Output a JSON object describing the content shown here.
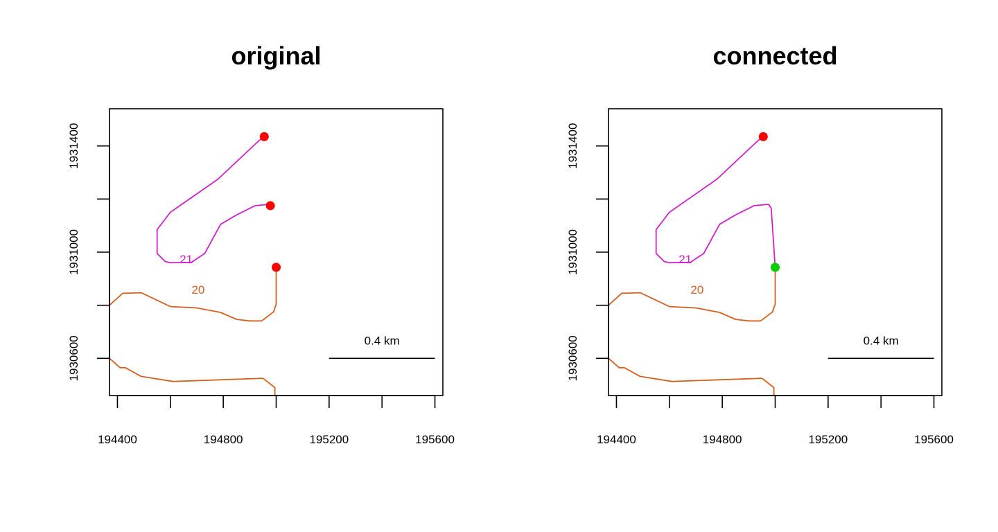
{
  "chart_data": [
    {
      "type": "line",
      "title": "original",
      "xlabel": "",
      "ylabel": "",
      "xlim": [
        194370,
        195630
      ],
      "ylim": [
        1930460,
        1931540
      ],
      "x_ticks": [
        194400,
        194600,
        194800,
        195000,
        195200,
        195400,
        195600
      ],
      "x_tick_labels": [
        "194400",
        "",
        "194800",
        "",
        "195200",
        "",
        "195600"
      ],
      "y_ticks": [
        1930600,
        1930800,
        1931000,
        1931200,
        1931400
      ],
      "y_tick_labels": [
        "1930600",
        "",
        "1931000",
        "",
        "1931400"
      ],
      "series": [
        {
          "color": "#cc22cc",
          "points": [
            [
              194950,
              1931430
            ],
            [
              194935,
              1931420
            ],
            [
              194780,
              1931275
            ],
            [
              194600,
              1931150
            ],
            [
              194550,
              1931085
            ],
            [
              194550,
              1930995
            ],
            [
              194580,
              1930965
            ],
            [
              194600,
              1930960
            ],
            [
              194680,
              1930962
            ],
            [
              194730,
              1930995
            ],
            [
              194790,
              1931105
            ],
            [
              194850,
              1931140
            ],
            [
              194920,
              1931175
            ],
            [
              194975,
              1931180
            ]
          ]
        },
        {
          "color": "#d2601f",
          "points": [
            [
              194370,
              1930800
            ],
            [
              194420,
              1930845
            ],
            [
              194490,
              1930847
            ],
            [
              194600,
              1930795
            ],
            [
              194700,
              1930790
            ],
            [
              194790,
              1930773
            ],
            [
              194850,
              1930747
            ],
            [
              194900,
              1930741
            ],
            [
              194945,
              1930741
            ],
            [
              194990,
              1930775
            ],
            [
              195000,
              1930805
            ],
            [
              195000,
              1930940
            ]
          ]
        },
        {
          "color": "#d2601f",
          "points": [
            [
              194370,
              1930600
            ],
            [
              194410,
              1930565
            ],
            [
              194430,
              1930565
            ],
            [
              194490,
              1930532
            ],
            [
              194610,
              1930513
            ],
            [
              194950,
              1930525
            ],
            [
              194995,
              1930490
            ],
            [
              194995,
              1930460
            ]
          ]
        }
      ],
      "points": [
        {
          "x": 194955,
          "y": 1931435,
          "color": "#ff0000"
        },
        {
          "x": 194978,
          "y": 1931175,
          "color": "#ff0000"
        },
        {
          "x": 195000,
          "y": 1930943,
          "color": "#ff0000"
        }
      ],
      "labels": [
        {
          "text": "21",
          "x": 194660,
          "y": 1930970,
          "color": "#cc22cc"
        },
        {
          "text": "20",
          "x": 194705,
          "y": 1930855,
          "color": "#d2601f"
        }
      ],
      "scale_bar": {
        "label": "0.4 km",
        "x0": 195200,
        "x1": 195600,
        "y": 1930600
      }
    },
    {
      "type": "line",
      "title": "connected",
      "xlabel": "",
      "ylabel": "",
      "xlim": [
        194370,
        195630
      ],
      "ylim": [
        1930460,
        1931540
      ],
      "x_ticks": [
        194400,
        194600,
        194800,
        195000,
        195200,
        195400,
        195600
      ],
      "x_tick_labels": [
        "194400",
        "",
        "194800",
        "",
        "195200",
        "",
        "195600"
      ],
      "y_ticks": [
        1930600,
        1930800,
        1931000,
        1931200,
        1931400
      ],
      "y_tick_labels": [
        "1930600",
        "",
        "1931000",
        "",
        "1931400"
      ],
      "series": [
        {
          "color": "#cc22cc",
          "points": [
            [
              194950,
              1931430
            ],
            [
              194935,
              1931420
            ],
            [
              194780,
              1931275
            ],
            [
              194600,
              1931150
            ],
            [
              194550,
              1931085
            ],
            [
              194550,
              1930995
            ],
            [
              194580,
              1930965
            ],
            [
              194600,
              1930960
            ],
            [
              194680,
              1930962
            ],
            [
              194730,
              1930995
            ],
            [
              194790,
              1931105
            ],
            [
              194850,
              1931140
            ],
            [
              194920,
              1931175
            ],
            [
              194975,
              1931180
            ],
            [
              194985,
              1931165
            ],
            [
              195000,
              1930943
            ]
          ]
        },
        {
          "color": "#d2601f",
          "points": [
            [
              194370,
              1930800
            ],
            [
              194420,
              1930845
            ],
            [
              194490,
              1930847
            ],
            [
              194600,
              1930795
            ],
            [
              194700,
              1930790
            ],
            [
              194790,
              1930773
            ],
            [
              194850,
              1930747
            ],
            [
              194900,
              1930741
            ],
            [
              194945,
              1930741
            ],
            [
              194990,
              1930775
            ],
            [
              195000,
              1930805
            ],
            [
              195000,
              1930940
            ]
          ]
        },
        {
          "color": "#d2601f",
          "points": [
            [
              194370,
              1930600
            ],
            [
              194410,
              1930565
            ],
            [
              194430,
              1930565
            ],
            [
              194490,
              1930532
            ],
            [
              194610,
              1930513
            ],
            [
              194950,
              1930525
            ],
            [
              194995,
              1930490
            ],
            [
              194995,
              1930460
            ]
          ]
        }
      ],
      "points": [
        {
          "x": 194955,
          "y": 1931435,
          "color": "#ff0000"
        },
        {
          "x": 195000,
          "y": 1930943,
          "color": "#00cc00"
        }
      ],
      "labels": [
        {
          "text": "21",
          "x": 194660,
          "y": 1930970,
          "color": "#cc22cc"
        },
        {
          "text": "20",
          "x": 194705,
          "y": 1930855,
          "color": "#d2601f"
        }
      ],
      "scale_bar": {
        "label": "0.4 km",
        "x0": 195200,
        "x1": 195600,
        "y": 1930600
      }
    }
  ]
}
